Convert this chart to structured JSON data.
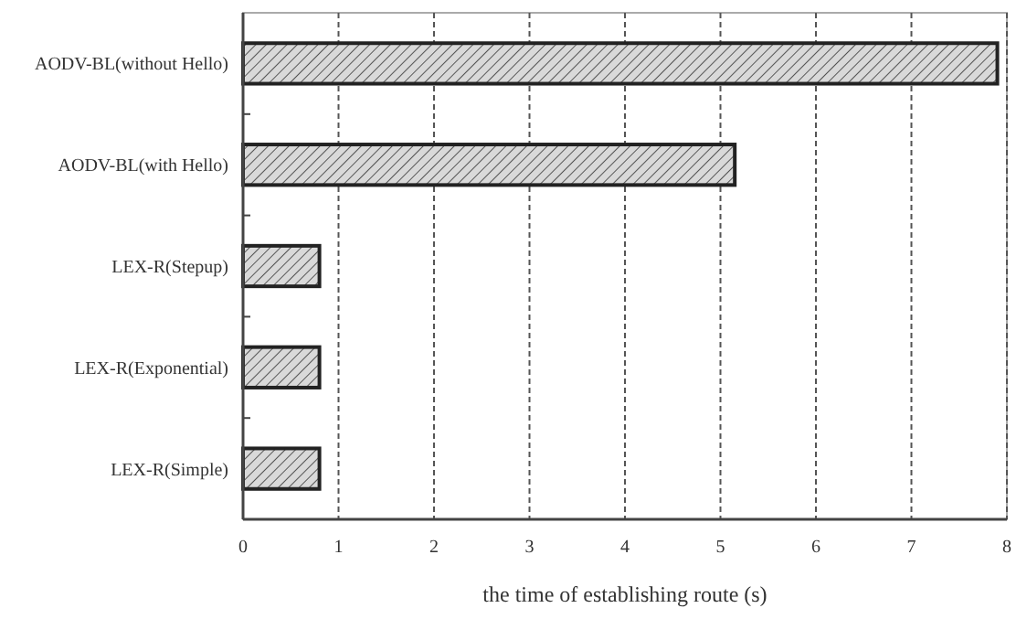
{
  "chart_data": {
    "type": "bar",
    "orientation": "horizontal",
    "categories": [
      "AODV-BL(without Hello)",
      "AODV-BL(with Hello)",
      "LEX-R(Stepup)",
      "LEX-R(Exponential)",
      "LEX-R(Simple)"
    ],
    "values": [
      7.9,
      5.15,
      0.8,
      0.8,
      0.8
    ],
    "xlabel": "the time of establishing route (s)",
    "xlim": [
      0,
      8
    ],
    "xticks": [
      0,
      1,
      2,
      3,
      4,
      5,
      6,
      7,
      8
    ],
    "grid": "x"
  }
}
